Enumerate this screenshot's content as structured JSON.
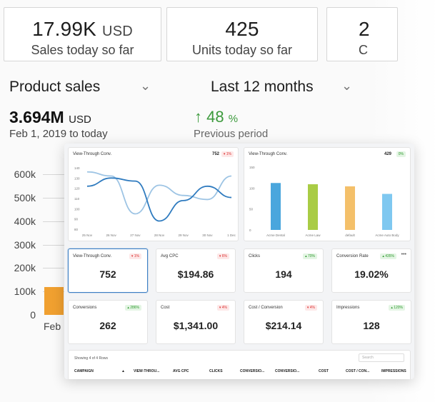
{
  "kpis": [
    {
      "value": "17.99K",
      "unit": "USD",
      "label": "Sales today so far"
    },
    {
      "value": "425",
      "unit": "",
      "label": "Units today so far"
    },
    {
      "value": "2",
      "unit": "",
      "label": "C"
    }
  ],
  "selectors": {
    "metric": "Product sales",
    "period": "Last 12 months"
  },
  "summary": {
    "total": "3.694M",
    "total_unit": "USD",
    "date_range": "Feb 1, 2019 to today",
    "delta_arrow": "↑",
    "delta_value": "48",
    "delta_unit": "%",
    "delta_label": "Previous period"
  },
  "background_chart": {
    "y_ticks": [
      "600k",
      "500k",
      "400k",
      "300k",
      "200k",
      "100k",
      "0"
    ],
    "x_label": "Feb",
    "bar_value": 120000,
    "bar_color": "#f0a030",
    "y_max": 600000
  },
  "dashboard": {
    "line_card": {
      "title": "View-Through Conv.",
      "value": "752",
      "badge": "▾ 1%"
    },
    "bar_card": {
      "title": "View-Through Conv.",
      "value": "429",
      "badge": "0%"
    },
    "metric_cards": [
      {
        "title": "View-Through Conv.",
        "badge": "▾ 1%",
        "badge_type": "red",
        "value": "752",
        "active": true
      },
      {
        "title": "Avg CPC",
        "badge": "▾ 6%",
        "badge_type": "red",
        "value": "$194.86",
        "active": false
      },
      {
        "title": "Clicks",
        "badge": "▴ 70%",
        "badge_type": "green",
        "value": "194",
        "active": false
      },
      {
        "title": "Conversion Rate",
        "badge": "▴ 435%",
        "badge_type": "green",
        "value": "19.02%",
        "active": false,
        "more": "•••"
      },
      {
        "title": "Conversions",
        "badge": "▴ 286%",
        "badge_type": "green",
        "value": "262",
        "active": false
      },
      {
        "title": "Cost",
        "badge": "▾ 4%",
        "badge_type": "red",
        "value": "$1,341.00",
        "active": false
      },
      {
        "title": "Cost / Conversion",
        "badge": "▾ 4%",
        "badge_type": "red",
        "value": "$214.14",
        "active": false
      },
      {
        "title": "Impressions",
        "badge": "▴ 120%",
        "badge_type": "green",
        "value": "128",
        "active": false
      }
    ],
    "table": {
      "rows_info": "Showing 4 of 4 Rows",
      "search_placeholder": "Search",
      "headers": [
        "CAMPAIGN",
        "▲",
        "VIEW-THROU...",
        "AVG CPC",
        "CLICKS",
        "CONVERSIO...",
        "CONVERSIO...",
        "COST",
        "COST / CON...",
        "IMPRESSIONS"
      ]
    }
  },
  "chart_data": [
    {
      "type": "bar",
      "title": "",
      "categories": [
        "Feb"
      ],
      "values": [
        120000
      ],
      "ylim": [
        0,
        600000
      ],
      "y_ticks": [
        "600k",
        "500k",
        "400k",
        "300k",
        "200k",
        "100k",
        "0"
      ]
    },
    {
      "type": "line",
      "title": "View-Through Conv.",
      "x": [
        "25 Nov",
        "26 Nov",
        "27 Nov",
        "28 Nov",
        "29 Nov",
        "30 Nov",
        "1 Dec"
      ],
      "y_ticks": [
        140,
        130,
        120,
        110,
        100,
        90,
        80
      ],
      "ylim": [
        80,
        140
      ],
      "series": [
        {
          "name": "",
          "color": "#2f7bbf",
          "values": [
            122,
            130,
            127,
            88,
            108,
            122,
            111
          ]
        },
        {
          "name": "",
          "color": "#9dc4e4",
          "values": [
            136,
            132,
            95,
            123,
            113,
            109,
            132
          ]
        }
      ]
    },
    {
      "type": "bar",
      "title": "View-Through Conv.",
      "categories": [
        "Acme Dental",
        "Acme Law",
        "default",
        "Acme Auto Body"
      ],
      "values": [
        112,
        109,
        104,
        86
      ],
      "colors": [
        "#4aa6dd",
        "#a9cc45",
        "#f4c06a",
        "#7fc8f0"
      ],
      "y_ticks": [
        150,
        100,
        50,
        0
      ],
      "ylim": [
        0,
        150
      ]
    }
  ]
}
